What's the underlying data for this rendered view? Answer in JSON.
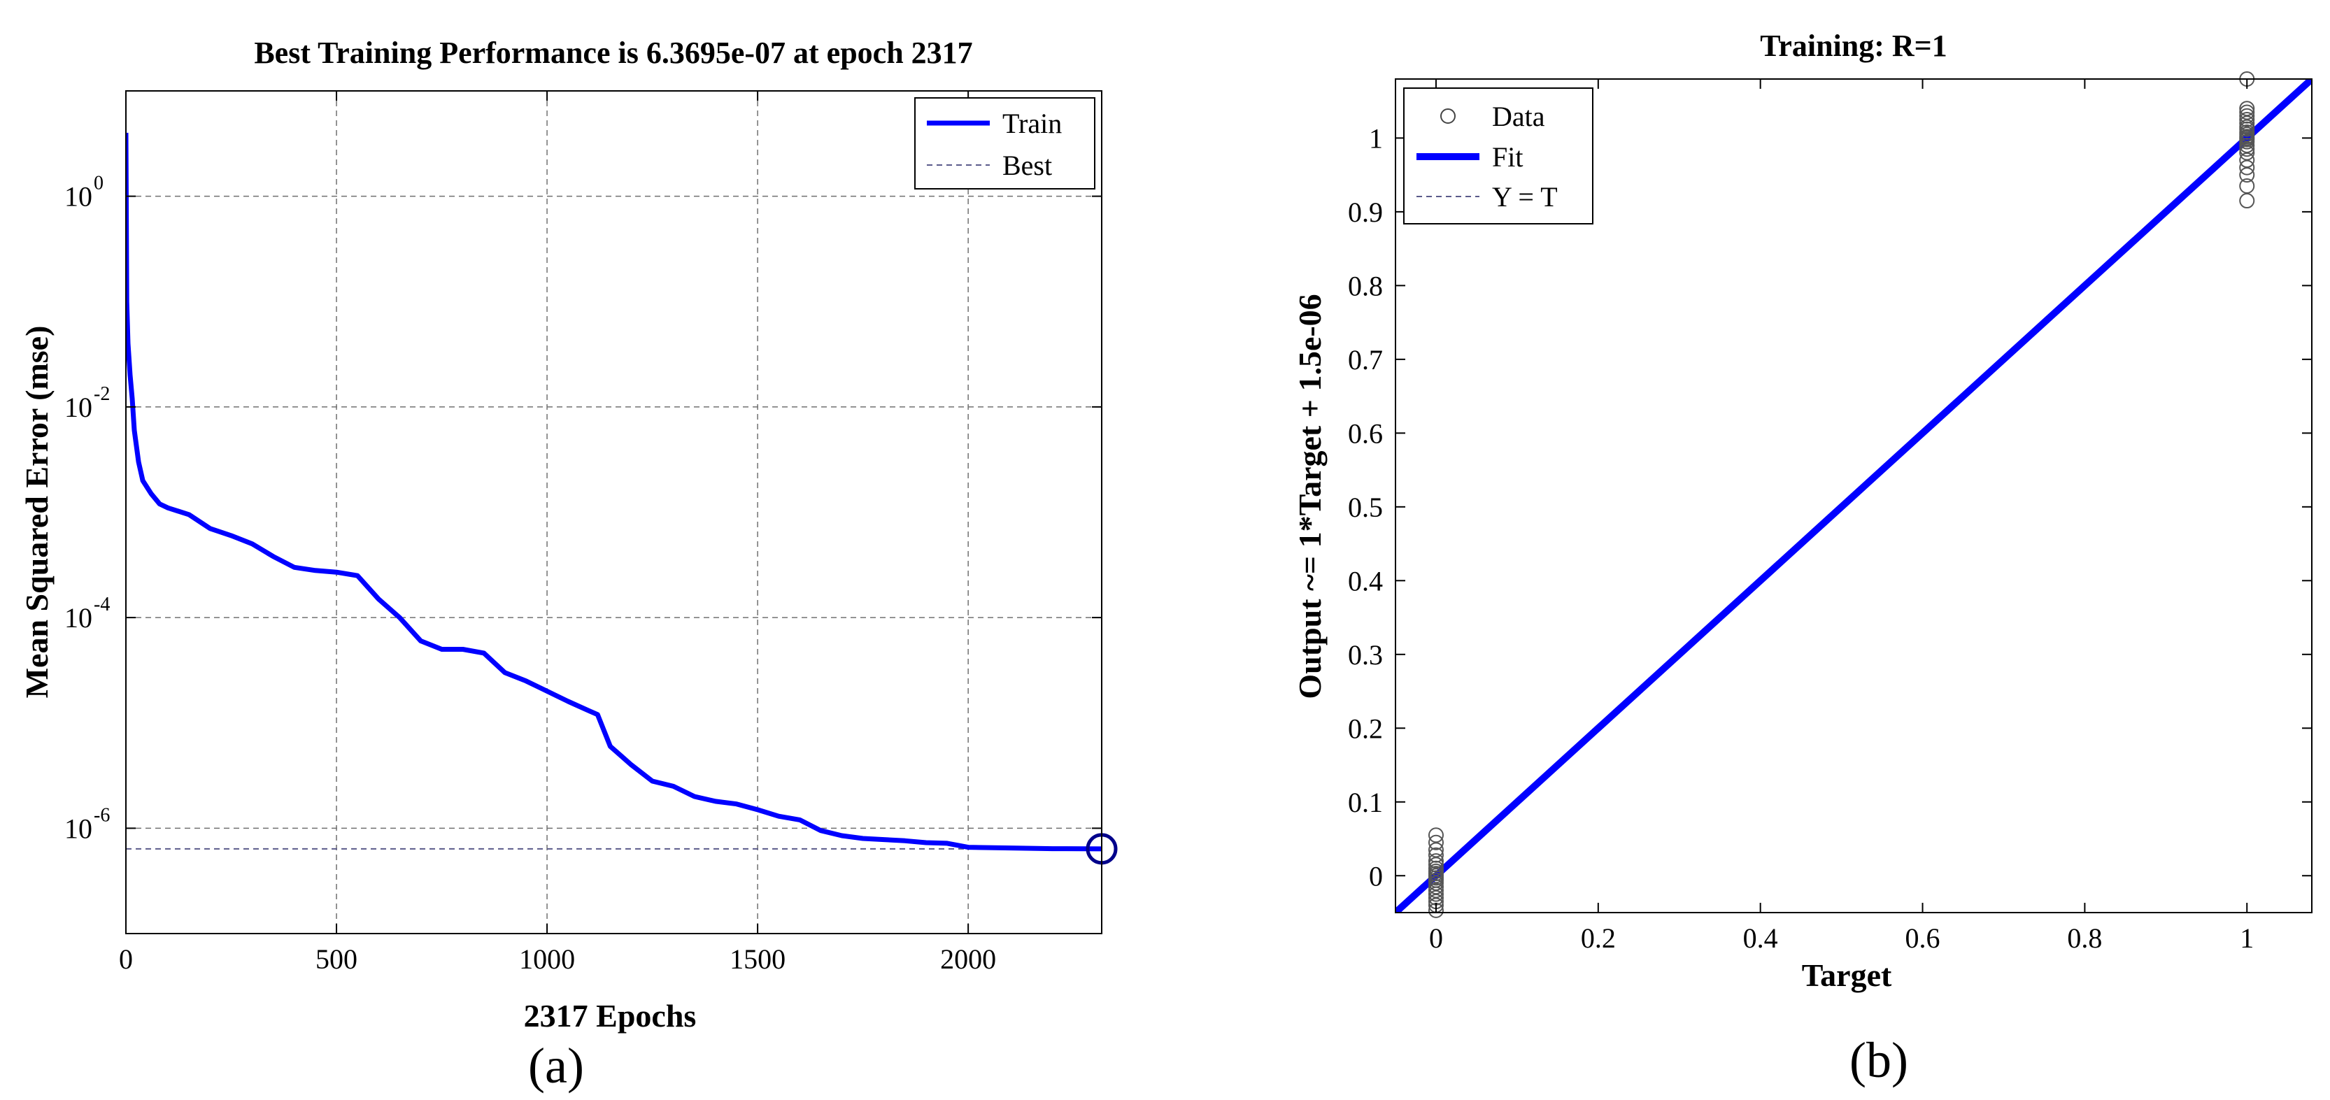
{
  "chart_data": [
    {
      "type": "line",
      "panel_label": "(a)",
      "title": "Best Training Performance is 6.3695e-07 at epoch 2317",
      "xlabel": "2317 Epochs",
      "ylabel": "Mean Squared Error  (mse)",
      "xlim": [
        0,
        2317
      ],
      "ylim": [
        1e-07,
        10
      ],
      "yscale": "log",
      "xticks": [
        0,
        500,
        1000,
        1500,
        2000
      ],
      "xtick_labels": [
        "0",
        "500",
        "1000",
        "1500",
        "2000"
      ],
      "yticks": [
        1,
        0.01,
        0.0001,
        1e-06
      ],
      "ytick_labels": [
        {
          "base": "10",
          "exp": "0"
        },
        {
          "base": "10",
          "exp": "-2"
        },
        {
          "base": "10",
          "exp": "-4"
        },
        {
          "base": "10",
          "exp": "-6"
        }
      ],
      "grid": true,
      "legend": {
        "position": "top-right",
        "entries": [
          "Train",
          "Best"
        ]
      },
      "series": [
        {
          "name": "Train",
          "color": "#0000ff",
          "x": [
            0,
            2,
            5,
            10,
            15,
            20,
            30,
            40,
            60,
            80,
            100,
            150,
            200,
            250,
            300,
            350,
            400,
            450,
            500,
            550,
            600,
            650,
            700,
            750,
            800,
            850,
            900,
            950,
            1000,
            1050,
            1100,
            1120,
            1150,
            1200,
            1250,
            1300,
            1350,
            1400,
            1450,
            1500,
            1550,
            1600,
            1650,
            1700,
            1750,
            1800,
            1850,
            1900,
            1950,
            2000,
            2100,
            2200,
            2317
          ],
          "y": [
            4,
            0.1,
            0.04,
            0.02,
            0.012,
            0.006,
            0.003,
            0.002,
            0.0015,
            0.0012,
            0.0011,
            0.00095,
            0.0007,
            0.0006,
            0.0005,
            0.00038,
            0.0003,
            0.00028,
            0.00027,
            0.00025,
            0.00015,
            0.0001,
            6e-05,
            5e-05,
            5e-05,
            4.6e-05,
            3e-05,
            2.5e-05,
            2e-05,
            1.6e-05,
            1.3e-05,
            1.2e-05,
            6e-06,
            4e-06,
            2.8e-06,
            2.5e-06,
            2e-06,
            1.8e-06,
            1.7e-06,
            1.5e-06,
            1.3e-06,
            1.2e-06,
            9.5e-07,
            8.5e-07,
            8e-07,
            7.8e-07,
            7.6e-07,
            7.3e-07,
            7.2e-07,
            6.6e-07,
            6.5e-07,
            6.4e-07,
            6.3695e-07
          ]
        },
        {
          "name": "Best",
          "color": "#5a5a8a",
          "y_value": 6.3695e-07,
          "marker_at_epoch": 2317
        }
      ]
    },
    {
      "type": "scatter",
      "panel_label": "(b)",
      "title": "Training: R=1",
      "xlabel": "Target",
      "ylabel": "Output ~= 1*Target + 1.5e-06",
      "xlim": [
        -0.05,
        1.08
      ],
      "ylim": [
        -0.05,
        1.08
      ],
      "xticks": [
        0,
        0.2,
        0.4,
        0.6,
        0.8,
        1
      ],
      "xtick_labels": [
        "0",
        "0.2",
        "0.4",
        "0.6",
        "0.8",
        "1"
      ],
      "yticks": [
        0,
        0.1,
        0.2,
        0.3,
        0.4,
        0.5,
        0.6,
        0.7,
        0.8,
        0.9,
        1
      ],
      "ytick_labels": [
        "0",
        "0.1",
        "0.2",
        "0.3",
        "0.4",
        "0.5",
        "0.6",
        "0.7",
        "0.8",
        "0.9",
        "1"
      ],
      "grid": false,
      "legend": {
        "position": "top-left",
        "entries": [
          "Data",
          "Fit",
          "Y = T"
        ]
      },
      "series": [
        {
          "name": "Data",
          "x": [
            0,
            0,
            0,
            0,
            0,
            0,
            0,
            0,
            0,
            0,
            0,
            0,
            0,
            0,
            0,
            0,
            0,
            0,
            0,
            0,
            1,
            1,
            1,
            1,
            1,
            1,
            1,
            1,
            1,
            1,
            1,
            1,
            1,
            1,
            1,
            1,
            1,
            1,
            1,
            1,
            1,
            1
          ],
          "y": [
            0.055,
            0.045,
            0.035,
            0.028,
            0.02,
            0.015,
            0.01,
            0.006,
            0.003,
            0.0,
            -0.003,
            -0.006,
            -0.01,
            -0.015,
            -0.02,
            -0.025,
            -0.03,
            -0.035,
            -0.04,
            -0.047,
            1.08,
            1.04,
            1.035,
            1.03,
            1.025,
            1.02,
            1.015,
            1.012,
            1.008,
            1.005,
            1.002,
            1.0,
            0.998,
            0.995,
            0.99,
            0.985,
            0.98,
            0.97,
            0.96,
            0.95,
            0.935,
            0.915
          ]
        },
        {
          "name": "Fit",
          "color": "#0000ff",
          "slope": 1,
          "intercept": 1.5e-06
        },
        {
          "name": "Y = T",
          "color": "#5a5a8a",
          "slope": 1,
          "intercept": 0
        }
      ]
    }
  ]
}
